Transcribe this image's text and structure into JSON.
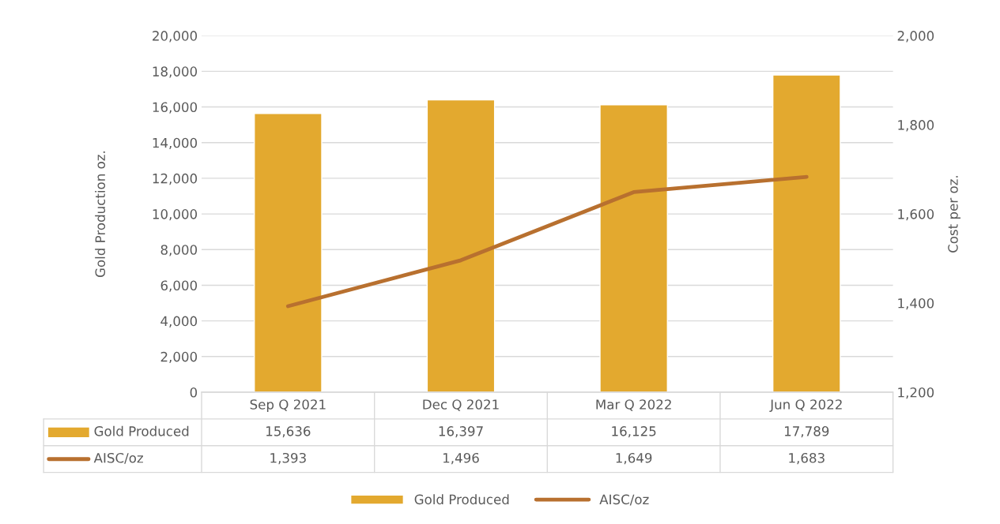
{
  "chart_data": {
    "type": "bar",
    "ylabel": "Gold Production oz.",
    "y2label": "Cost per oz.",
    "categories": [
      "Sep Q 2021",
      "Dec Q 2021",
      "Mar Q 2022",
      "Jun Q 2022"
    ],
    "series": [
      {
        "name": "Gold Produced",
        "color": "#e3a92f",
        "values": [
          15636,
          16397,
          16125,
          17789
        ],
        "value_labels": [
          "15,636",
          "16,397",
          "16,125",
          "17,789"
        ]
      },
      {
        "name": "AISC/oz",
        "type": "line",
        "axis": "y2",
        "color": "#b8702f",
        "values": [
          1393,
          1496,
          1649,
          1683
        ],
        "value_labels": [
          "1,393",
          "1,496",
          "1,649",
          "1,683"
        ]
      }
    ],
    "ylim": [
      0,
      20000
    ],
    "yticks": [
      0,
      {
        "value": 2000,
        "label": "2,000"
      },
      {
        "value": 4000,
        "label": "4,000"
      },
      {
        "value": 6000,
        "label": "6,000"
      },
      {
        "value": 8000,
        "label": "8,000"
      },
      {
        "value": 10000,
        "label": "10,000"
      },
      {
        "value": 12000,
        "label": "12,000"
      },
      {
        "value": 14000,
        "label": "14,000"
      },
      {
        "value": 16000,
        "label": "16,000"
      },
      {
        "value": 18000,
        "label": "18,000"
      },
      {
        "value": 20000,
        "label": "20,000"
      }
    ],
    "y2lim": [
      1200,
      2000
    ],
    "y2ticks": [
      {
        "value": 1200,
        "label": "1,200"
      },
      {
        "value": 1400,
        "label": "1,400"
      },
      {
        "value": 1600,
        "label": "1,600"
      },
      {
        "value": 1800,
        "label": "1,800"
      },
      {
        "value": 2000,
        "label": "2,000"
      }
    ],
    "grid": "y",
    "legend": "bottom"
  }
}
